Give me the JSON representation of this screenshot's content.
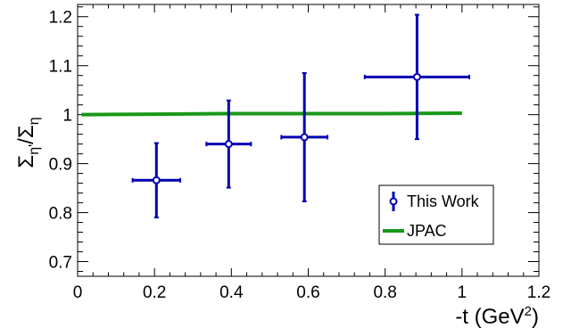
{
  "chart_data": {
    "type": "scatter",
    "xlabel_main": "-t (GeV",
    "xlabel_sup": "2",
    "xlabel_close": ")",
    "ylabel_sigma1": "Σ",
    "ylabel_sub1": "η'",
    "ylabel_slash": "/Σ",
    "ylabel_sub2": "η",
    "xlim": [
      0,
      1.2
    ],
    "ylim": [
      0.67,
      1.225
    ],
    "x_ticks": [
      "0",
      "0.2",
      "0.4",
      "0.6",
      "0.8",
      "1",
      "1.2"
    ],
    "x_tick_values": [
      0,
      0.2,
      0.4,
      0.6,
      0.8,
      1.0,
      1.2
    ],
    "y_ticks": [
      "0.7",
      "0.8",
      "0.9",
      "1",
      "1.1",
      "1.2"
    ],
    "y_tick_values": [
      0.7,
      0.8,
      0.9,
      1.0,
      1.1,
      1.2
    ],
    "grid": false,
    "legend_position": "bottom-right",
    "series": [
      {
        "name": "This Work",
        "kind": "points-with-errors",
        "color": "#0000b4",
        "points": [
          {
            "x": 0.205,
            "y": 0.866,
            "xerr": 0.062,
            "yerr": 0.076
          },
          {
            "x": 0.393,
            "y": 0.94,
            "xerr": 0.058,
            "yerr": 0.089
          },
          {
            "x": 0.59,
            "y": 0.954,
            "xerr": 0.06,
            "yerr": 0.131
          },
          {
            "x": 0.883,
            "y": 1.077,
            "xerr": 0.136,
            "yerr": 0.127
          }
        ]
      },
      {
        "name": "JPAC",
        "kind": "line",
        "color": "#189818",
        "x": [
          0.01,
          0.2,
          0.4,
          0.6,
          0.8,
          1.0
        ],
        "y": [
          1.0,
          1.001,
          1.002,
          1.002,
          1.002,
          1.003
        ]
      }
    ]
  }
}
